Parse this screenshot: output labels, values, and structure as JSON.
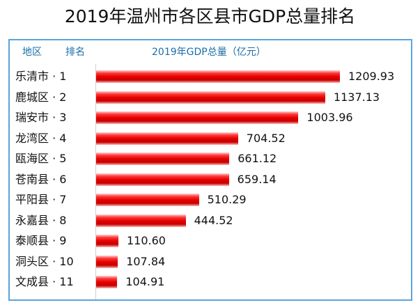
{
  "title": "2019年温州市各区县市GDP总量排名",
  "chart_data": {
    "type": "bar",
    "orientation": "horizontal",
    "title": "2019年温州市各区县市GDP总量排名",
    "header": {
      "region": "地区",
      "rank": "排名",
      "value": "2019年GDP总量（亿元）"
    },
    "categories": [
      "乐清市 · 1",
      "鹿城区 · 2",
      "瑞安市 · 3",
      "龙湾区 · 4",
      "瓯海区 · 5",
      "苍南县 · 6",
      "平阳县 · 7",
      "永嘉县 · 8",
      "泰顺县 · 9",
      "洞头区 · 10",
      "文成县 · 11"
    ],
    "values": [
      1209.93,
      1137.13,
      1003.96,
      704.52,
      661.12,
      659.14,
      510.29,
      444.52,
      110.6,
      107.84,
      104.91
    ],
    "value_labels": [
      "1209.93",
      "1137.13",
      "1003.96",
      "704.52",
      "661.12",
      "659.14",
      "510.29",
      "444.52",
      "110.60",
      "107.84",
      "104.91"
    ],
    "xlim": [
      0,
      1400
    ],
    "colors": {
      "bar": "#e60000",
      "border": "#5aa4dc",
      "header_text": "#1a6fa8"
    }
  }
}
